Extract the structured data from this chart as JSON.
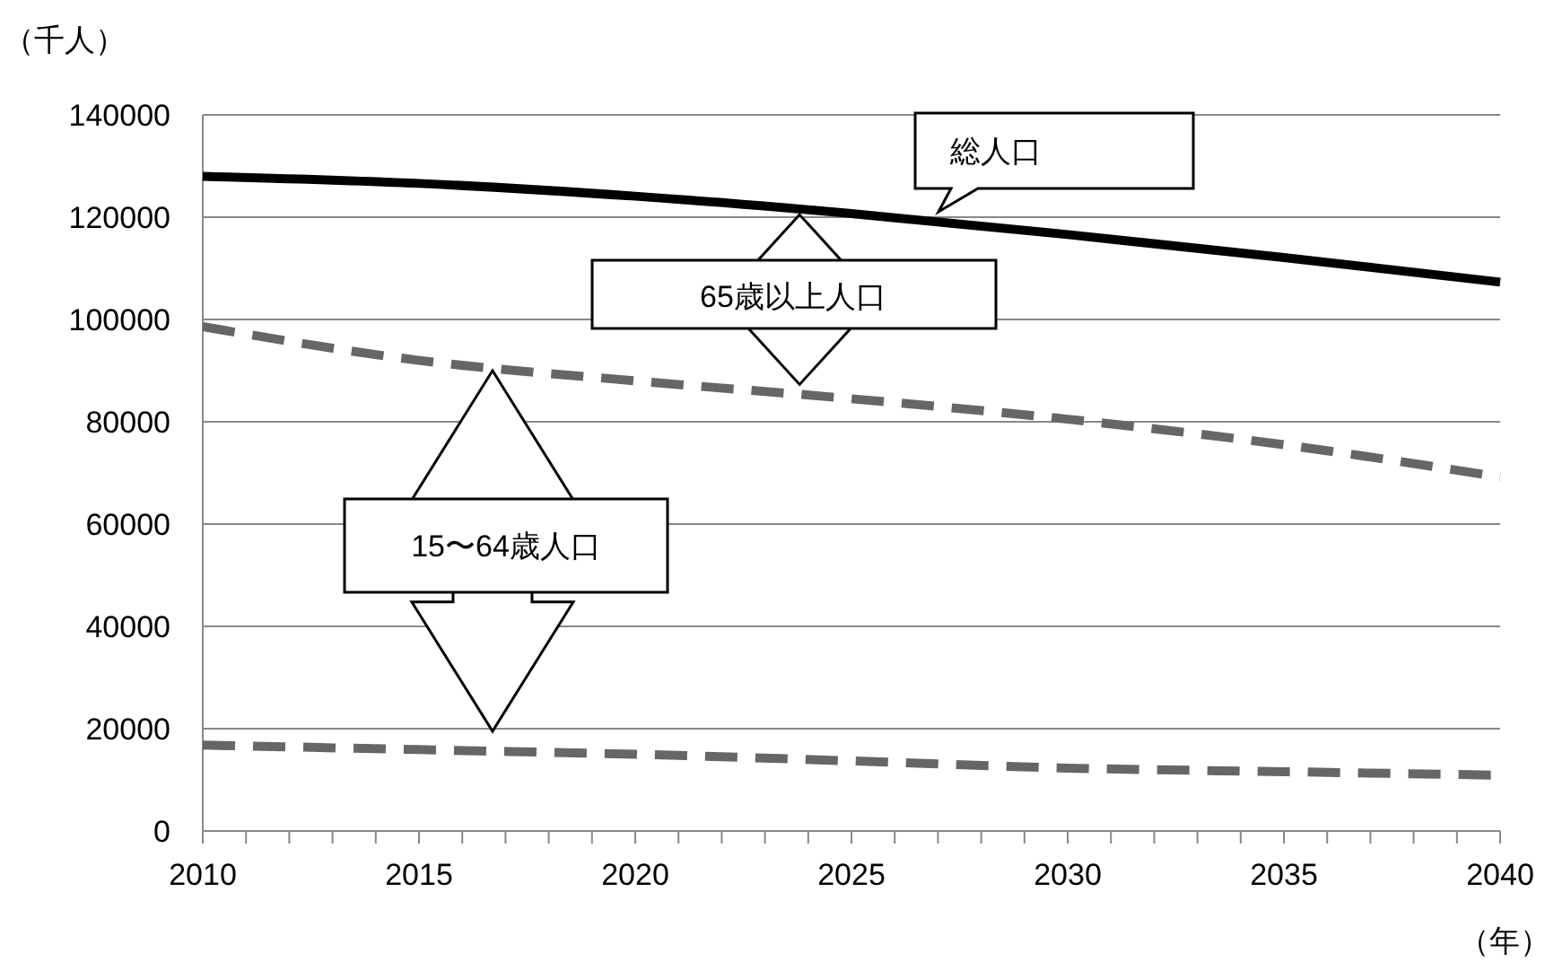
{
  "chart_data": {
    "type": "line",
    "ylabel": "（千人）",
    "xlabel": "（年）",
    "x": [
      2010,
      2015,
      2020,
      2025,
      2030,
      2035,
      2040
    ],
    "series": [
      {
        "color": "#000000",
        "line_style": "solid",
        "values": [
          128000,
          126600,
          124100,
          120700,
          116600,
          112100,
          107300
        ]
      },
      {
        "color": "#666666",
        "line_style": "dashed",
        "values": [
          98600,
          92000,
          88000,
          84500,
          80500,
          75500,
          69200
        ]
      },
      {
        "color": "#666666",
        "line_style": "dashed",
        "values": [
          16800,
          15900,
          15000,
          13700,
          12300,
          11600,
          10900
        ]
      }
    ],
    "xlim": [
      2010,
      2040
    ],
    "xticks": [
      2010,
      {
        "value": 2011,
        "label": null
      },
      {
        "value": 2012,
        "label": null
      },
      {
        "value": 2013,
        "label": null
      },
      {
        "value": 2014,
        "label": null
      },
      2015,
      {
        "value": 2016,
        "label": null
      },
      {
        "value": 2017,
        "label": null
      },
      {
        "value": 2018,
        "label": null
      },
      {
        "value": 2019,
        "label": null
      },
      2020,
      {
        "value": 2021,
        "label": null
      },
      {
        "value": 2022,
        "label": null
      },
      {
        "value": 2023,
        "label": null
      },
      {
        "value": 2024,
        "label": null
      },
      2025,
      {
        "value": 2026,
        "label": null
      },
      {
        "value": 2027,
        "label": null
      },
      {
        "value": 2028,
        "label": null
      },
      {
        "value": 2029,
        "label": null
      },
      2030,
      {
        "value": 2031,
        "label": null
      },
      {
        "value": 2032,
        "label": null
      },
      {
        "value": 2033,
        "label": null
      },
      {
        "value": 2034,
        "label": null
      },
      2035,
      {
        "value": 2036,
        "label": null
      },
      {
        "value": 2037,
        "label": null
      },
      {
        "value": 2038,
        "label": null
      },
      {
        "value": 2039,
        "label": null
      },
      2040
    ],
    "ylim": [
      0,
      140000
    ],
    "yticks": [
      0,
      20000,
      40000,
      60000,
      80000,
      100000,
      120000,
      140000
    ],
    "grid": "y",
    "marker": "none",
    "annotations": [
      "総人口",
      "65歳以上人口",
      "15〜64歳人口"
    ]
  }
}
